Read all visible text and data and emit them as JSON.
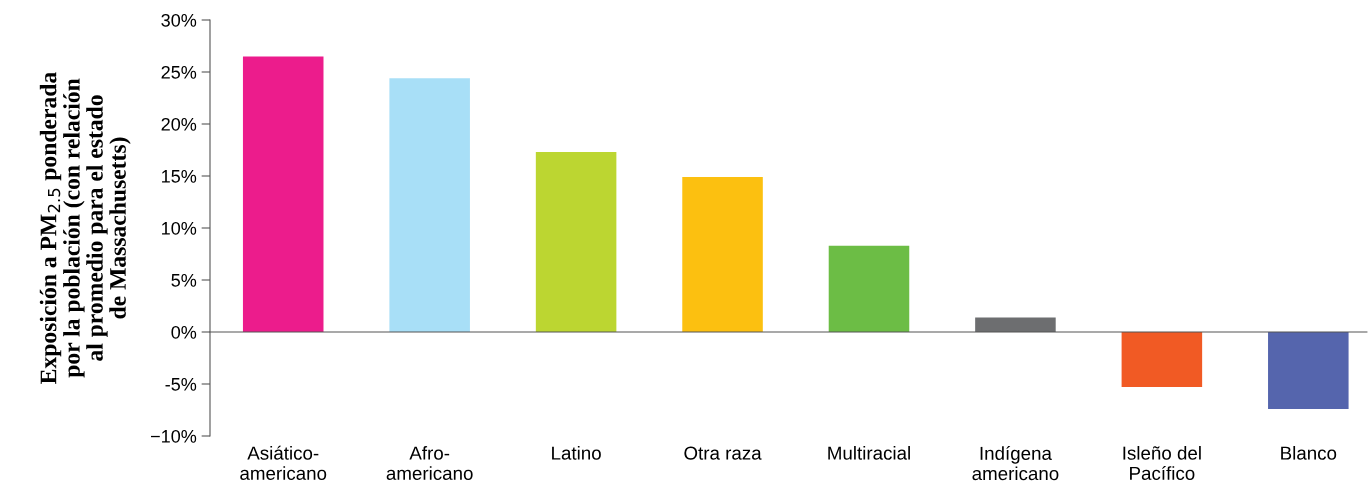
{
  "chart_data": {
    "type": "bar",
    "ylabel": "Exposición a PM$_{2.5}$ ponderada\npor la población (con relación\nal promedio para el estado\nde Massachusetts)",
    "categories": [
      "Asiático-\namericano",
      "Afro-\namericano",
      "Latino",
      "Otra raza",
      "Multiracial",
      "Indígena\namericano",
      "Isleño del\nPacífico",
      "Blanco"
    ],
    "values": [
      26.5,
      24.4,
      17.3,
      14.9,
      8.3,
      1.4,
      -5.3,
      -7.4
    ],
    "colors": [
      "#ec1c8c",
      "#a8dff7",
      "#bcd631",
      "#fcc010",
      "#6cbd45",
      "#6d6e70",
      "#f15a24",
      "#5565ad"
    ],
    "ylim": [
      -10,
      30
    ],
    "yticks": [
      {
        "value": -10,
        "label": "−10%"
      },
      {
        "value": -5,
        "label": "-5%"
      },
      {
        "value": 0,
        "label": "0%"
      },
      {
        "value": 5,
        "label": "5%"
      },
      {
        "value": 10,
        "label": "10%"
      },
      {
        "value": 15,
        "label": "15%"
      },
      {
        "value": 20,
        "label": "20%"
      },
      {
        "value": 25,
        "label": "25%"
      },
      {
        "value": 30,
        "label": "30%"
      }
    ],
    "legend": false
  }
}
